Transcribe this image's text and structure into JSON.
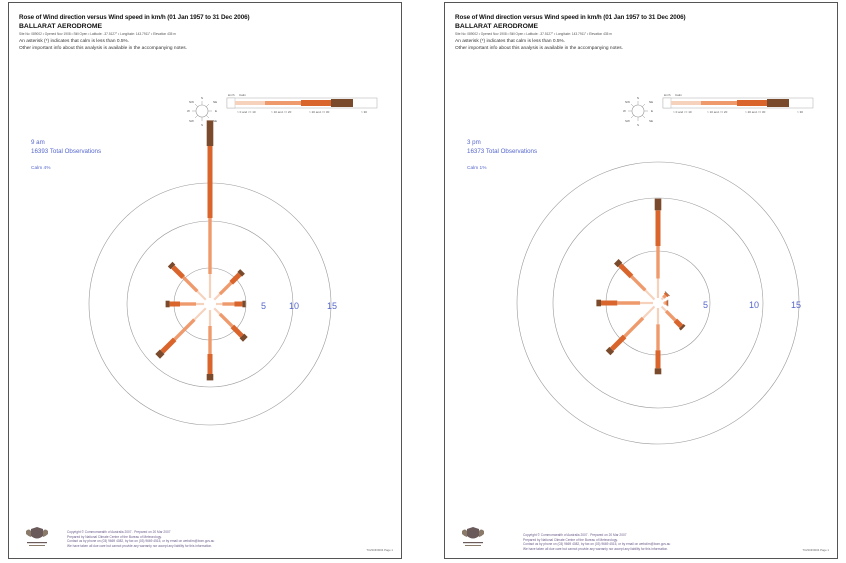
{
  "pages": [
    {
      "title": "Rose of Wind direction versus Wind speed in km/h (01 Jan 1957 to 31 Dec 2006)",
      "station": "BALLARAT AERODROME",
      "meta": "Site No: 089002 • Opened Nov 1908 • Still Open • Latitude: -37.5127° • Longitude: 143.7911° • Elevation 435 m",
      "note_line1": "An asterisk (*) indicates that calm is less than 0.5%.",
      "note_line2": "Other important info about this analysis is available in the accompanying notes.",
      "time_label": "9 am",
      "observations": "16393 Total Observations",
      "calm": "Calm 4%",
      "legend_km": "km/h",
      "legend_calm": "Calm",
      "legend_ranges": [
        "> 0 and <= 10",
        "> 10 and <= 20",
        "> 20 and <= 30",
        "> 30"
      ],
      "compass": [
        "N",
        "NE",
        "E",
        "SE",
        "S",
        "SW",
        "W",
        "NW"
      ],
      "ring_labels": [
        "5",
        "10",
        "15"
      ],
      "footer_line1": "Copyright © Commonwealth of Australia 2007 . Prepared on 20 Mar 2007",
      "footer_line2": "Prepared by National Climate Centre of the Bureau of Meteorology.",
      "footer_line3": "Contact us by phone on (03) 9669 4082, by fax on (03) 9669 4515, or by email on webclim@bom.gov.au",
      "footer_line4": "We have taken all due care but cannot provide any warranty nor accept any liability for this information.",
      "page_no": "TCZ1NF0004 Page 1"
    },
    {
      "title": "Rose of Wind direction versus Wind speed in km/h (01 Jan 1957 to 31 Dec 2006)",
      "station": "BALLARAT AERODROME",
      "meta": "Site No: 089002 • Opened Nov 1908 • Still Open • Latitude: -37.5127° • Longitude: 143.7911° • Elevation 435 m",
      "note_line1": "An asterisk (*) indicates that calm is less than 0.5%.",
      "note_line2": "Other important info about this analysis is available in the accompanying notes.",
      "time_label": "3 pm",
      "observations": "16373 Total Observations",
      "calm": "Calm 1%",
      "legend_km": "km/h",
      "legend_calm": "Calm",
      "legend_ranges": [
        "> 0 and <= 10",
        "> 10 and <= 20",
        "> 20 and <= 30",
        "> 30"
      ],
      "compass": [
        "N",
        "NE",
        "E",
        "SE",
        "S",
        "SW",
        "W",
        "NW"
      ],
      "ring_labels": [
        "5",
        "10",
        "15"
      ],
      "footer_line1": "Copyright © Commonwealth of Australia 2007 . Prepared on 20 Mar 2007",
      "footer_line2": "Prepared by National Climate Centre of the Bureau of Meteorology.",
      "footer_line3": "Contact us by phone on (03) 9669 4082, by fax on (03) 9669 4515, or by email on webclim@bom.gov.au",
      "footer_line4": "We have taken all due care but cannot provide any warranty nor accept any liability for this information.",
      "page_no": "TCZ1NF0004 Page 1"
    }
  ],
  "colors": {
    "speed_1": "#f6d2bd",
    "speed_2": "#ef9a6c",
    "speed_3": "#d9652c",
    "speed_4": "#7a4a2c",
    "rings": "#999999",
    "accent_text": "#5566cc"
  },
  "roses": [
    {
      "directions": [
        "N",
        "NE",
        "E",
        "SE",
        "S",
        "SW",
        "W",
        "NW"
      ],
      "percent_by_speed": [
        [
          3.0,
          7.0,
          9.0,
          3.2
        ],
        [
          1.0,
          2.0,
          1.5,
          0.5
        ],
        [
          0.8,
          1.5,
          1.0,
          0.4
        ],
        [
          1.0,
          2.2,
          1.7,
          0.6
        ],
        [
          2.0,
          3.5,
          2.5,
          0.8
        ],
        [
          2.0,
          3.5,
          2.2,
          0.8
        ],
        [
          1.0,
          2.0,
          1.3,
          0.5
        ],
        [
          1.5,
          2.5,
          1.8,
          0.5
        ]
      ]
    },
    {
      "directions": [
        "N",
        "NE",
        "E",
        "SE",
        "S",
        "SW",
        "W",
        "NW"
      ],
      "percent_by_speed": [
        [
          3.0,
          5.0,
          5.5,
          1.8
        ],
        [
          0.4,
          0.5,
          0.3,
          0.1
        ],
        [
          0.2,
          0.3,
          0.2,
          0.1
        ],
        [
          1.0,
          2.0,
          1.3,
          0.4
        ],
        [
          2.5,
          4.0,
          2.8,
          0.9
        ],
        [
          2.5,
          4.0,
          2.8,
          0.8
        ],
        [
          2.0,
          3.5,
          2.5,
          0.7
        ],
        [
          2.0,
          3.0,
          2.5,
          0.8
        ]
      ]
    }
  ]
}
